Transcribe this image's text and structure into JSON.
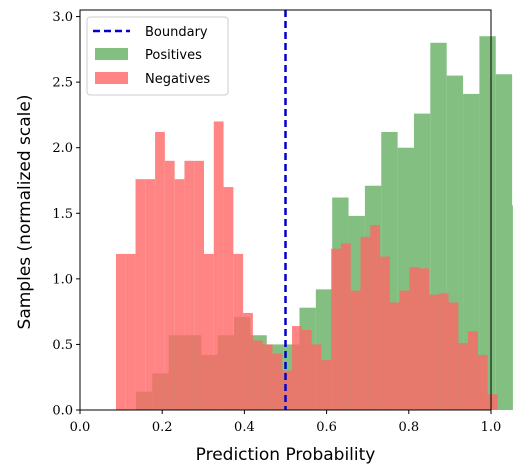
{
  "chart_data": {
    "type": "bar",
    "xlabel": "Prediction Probability",
    "ylabel": "Samples (normalized scale)",
    "xlim": [
      0.0,
      1.0
    ],
    "ylim": [
      0.0,
      3.05
    ],
    "xticks": [
      "0.0",
      "0.2",
      "0.4",
      "0.6",
      "0.8",
      "1.0"
    ],
    "yticks": [
      "0.0",
      "0.5",
      "1.0",
      "1.5",
      "2.0",
      "2.5",
      "3.0"
    ],
    "boundary": {
      "name": "Boundary",
      "x": 0.5,
      "color": "#0000cc"
    },
    "legend": {
      "position": "upper-left",
      "entries": [
        "Boundary",
        "Positives",
        "Negatives"
      ]
    },
    "series": [
      {
        "name": "Positives",
        "color": "#5aaa55",
        "alpha": 0.75,
        "bin_start": 0.136,
        "bin_width": 0.0398,
        "values": [
          0.14,
          0.28,
          0.57,
          0.57,
          0.42,
          0.57,
          0.71,
          0.57,
          0.5,
          0.5,
          0.78,
          0.92,
          1.62,
          1.48,
          1.71,
          2.12,
          2.0,
          2.26,
          2.8,
          2.55,
          2.41,
          2.85,
          2.56,
          1.56,
          0.57,
          0.28
        ]
      },
      {
        "name": "Negatives",
        "color": "#ff6666",
        "alpha": 0.8,
        "bin_start": 0.0875,
        "bin_width": 0.0238,
        "values": [
          1.19,
          1.19,
          1.76,
          1.76,
          2.12,
          1.9,
          1.76,
          1.9,
          1.9,
          1.19,
          2.2,
          1.7,
          1.19,
          0.74,
          0.53,
          0.5,
          0.43,
          0.3,
          0.64,
          0.61,
          0.5,
          0.38,
          1.23,
          1.27,
          0.91,
          1.32,
          1.41,
          1.17,
          0.82,
          0.91,
          1.09,
          1.08,
          0.88,
          0.89,
          0.82,
          0.51,
          0.6,
          0.42,
          0.12
        ]
      }
    ]
  }
}
